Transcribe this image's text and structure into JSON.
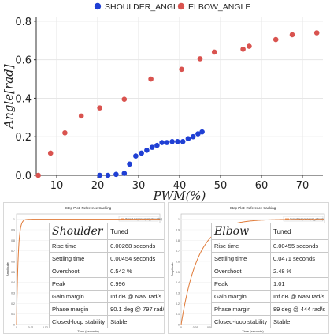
{
  "chart_data": [
    {
      "type": "scatter",
      "title": "",
      "xlabel": "PWM(%)",
      "ylabel": "Angle[rad]",
      "xlim": [
        5,
        75
      ],
      "ylim": [
        0,
        0.82
      ],
      "xticks": [
        "10",
        "20",
        "30",
        "40",
        "50",
        "60",
        "70"
      ],
      "yticks": [
        "0.0",
        "0.2",
        "0.4",
        "0.6",
        "0.8"
      ],
      "legend_position": "top",
      "grid": true,
      "series": [
        {
          "name": "SHOULDER_ANGLE",
          "color": "#1f3fd4",
          "x": [
            20.5,
            22.5,
            24.5,
            26.5,
            27.8,
            29.3,
            30.7,
            32.0,
            33.3,
            34.5,
            35.7,
            36.9,
            38.2,
            39.5,
            40.8,
            42.1,
            43.3,
            44.5,
            45.5
          ],
          "y": [
            0.0,
            0.0,
            0.005,
            0.01,
            0.058,
            0.1,
            0.115,
            0.13,
            0.145,
            0.155,
            0.17,
            0.17,
            0.175,
            0.175,
            0.175,
            0.19,
            0.2,
            0.215,
            0.225
          ]
        },
        {
          "name": "ELBOW_ANGLE",
          "color": "#d9534f",
          "x": [
            5.5,
            8.5,
            12.0,
            16.0,
            20.5,
            26.5,
            33.0,
            40.5,
            45.0,
            48.5,
            55.5,
            57.0,
            63.5,
            67.5,
            73.5
          ],
          "y": [
            0.0,
            0.115,
            0.22,
            0.308,
            0.35,
            0.395,
            0.5,
            0.55,
            0.605,
            0.64,
            0.655,
            0.67,
            0.705,
            0.73,
            0.74
          ]
        }
      ]
    },
    {
      "type": "line",
      "title": "Step Plot: Reference tracking",
      "xlabel": "Time (seconds)",
      "ylabel": "Amplitude",
      "legend": "Tuned response(ref_shoulder)",
      "xticks": [
        "0",
        "0.01",
        "0.02",
        "0.03",
        "0.04",
        "0.05",
        "0.06",
        "0.07",
        "0.08",
        "0.09",
        "0.1"
      ],
      "yticks": [
        "0",
        "0.1",
        "0.2",
        "0.3",
        "0.4",
        "0.5",
        "0.6",
        "0.7",
        "0.8",
        "0.9",
        "1"
      ],
      "curve": {
        "settling_time": 0.00454,
        "final_value": 1.0
      }
    },
    {
      "type": "line",
      "title": "Step Plot: Reference tracking",
      "xlabel": "Time (seconds)",
      "ylabel": "Amplitude",
      "legend": "Tuned response(ref_elbow)",
      "xticks": [
        "0",
        "0.01",
        "0.02",
        "0.03",
        "0.04",
        "0.05",
        "0.06",
        "0.07",
        "0.08",
        "0.09",
        "0.1"
      ],
      "yticks": [
        "0",
        "0.1",
        "0.2",
        "0.3",
        "0.4",
        "0.5",
        "0.6",
        "0.7",
        "0.8",
        "0.9",
        "1"
      ],
      "curve": {
        "settling_time": 0.0471,
        "final_value": 1.0
      }
    }
  ],
  "tables": {
    "shoulder": {
      "name": "Shoulder",
      "column": "Tuned",
      "rows": [
        {
          "label": "Rise time",
          "value": "0.00268 seconds"
        },
        {
          "label": "Settling time",
          "value": "0.00454 seconds"
        },
        {
          "label": "Overshoot",
          "value": "0.542 %"
        },
        {
          "label": "Peak",
          "value": "0.996"
        },
        {
          "label": "Gain margin",
          "value": "Inf dB @ NaN rad/s"
        },
        {
          "label": "Phase margin",
          "value": "90.1 deg @ 797 rad/s"
        },
        {
          "label": "Closed-loop stability",
          "value": "Stable"
        }
      ]
    },
    "elbow": {
      "name": "Elbow",
      "column": "Tuned",
      "rows": [
        {
          "label": "Rise time",
          "value": "0.00455 seconds"
        },
        {
          "label": "Settling time",
          "value": "0.0471 seconds"
        },
        {
          "label": "Overshoot",
          "value": "2.48 %"
        },
        {
          "label": "Peak",
          "value": "1.01"
        },
        {
          "label": "Gain margin",
          "value": "Inf dB @ NaN rad/s"
        },
        {
          "label": "Phase margin",
          "value": "89 deg @ 444 rad/s"
        },
        {
          "label": "Closed-loop stability",
          "value": "Stable"
        }
      ]
    }
  }
}
